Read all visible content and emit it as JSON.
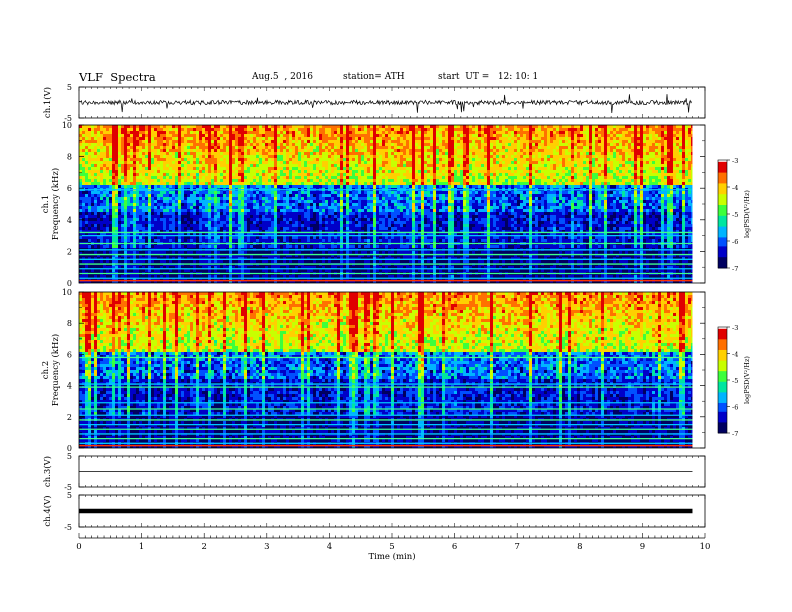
{
  "header": {
    "title": "VLF  Spectra",
    "date": "Aug.5  , 2016",
    "station": "station= ATH",
    "start": "start  UT =   12: 10: 1"
  },
  "chart_data": [
    {
      "type": "line",
      "panel": "ch1-voltage",
      "ylabel": "ch.1(V)",
      "yticks": [
        "5",
        "-5"
      ],
      "ylim": [
        -5,
        5
      ],
      "xlim": [
        0,
        10
      ],
      "data_extent_min": 9.8,
      "baseline_v": 0,
      "note_series": "noisy trace near 0 V with spikes"
    },
    {
      "type": "heatmap",
      "panel": "ch1-spectrogram",
      "ylabel": "ch.1\nFrequency (kHz)",
      "ylabel_line1": "ch.1",
      "ylabel_line2": "Frequency (kHz)",
      "yticks": [
        "0",
        "2",
        "4",
        "6",
        "8",
        "10"
      ],
      "ylim": [
        0,
        10
      ],
      "xlim": [
        0,
        10
      ],
      "colorbar": {
        "label": "logPSD(V²/Hz)",
        "ticks": [
          "-3",
          "-4",
          "-5",
          "-6",
          "-7"
        ],
        "range": [
          -7,
          -3
        ]
      },
      "persistent_lines_khz": [
        0.3,
        0.6,
        0.9,
        1.2,
        1.5,
        1.8,
        2.1,
        2.5,
        3.0,
        3.2,
        5.9
      ]
    },
    {
      "type": "heatmap",
      "panel": "ch2-spectrogram",
      "ylabel_line1": "ch.2",
      "ylabel_line2": "Frequency (kHz)",
      "yticks": [
        "0",
        "2",
        "4",
        "6",
        "8",
        "10"
      ],
      "ylim": [
        0,
        10
      ],
      "xlim": [
        0,
        10
      ],
      "colorbar": {
        "label": "logPSD(V²/Hz)",
        "ticks": [
          "-3",
          "-4",
          "-5",
          "-6",
          "-7"
        ],
        "range": [
          -7,
          -3
        ]
      },
      "persistent_lines_khz": [
        0.3,
        0.6,
        0.9,
        1.2,
        1.5,
        1.8,
        2.1,
        2.5,
        2.9,
        3.9,
        4.1,
        5.8
      ]
    },
    {
      "type": "line",
      "panel": "ch3-voltage",
      "ylabel": "ch.3(V)",
      "yticks": [
        "5",
        "-5"
      ],
      "ylim": [
        -5,
        5
      ],
      "xlim": [
        0,
        10
      ],
      "baseline_v": 0
    },
    {
      "type": "line",
      "panel": "ch4-voltage",
      "ylabel": "ch.4(V)",
      "yticks": [
        "5",
        "-5"
      ],
      "ylim": [
        -5,
        5
      ],
      "xlim": [
        0,
        10
      ],
      "baseline_v": 0
    }
  ],
  "x_axis": {
    "label": "Time  (min)",
    "ticks": [
      "0",
      "1",
      "2",
      "3",
      "4",
      "5",
      "6",
      "7",
      "8",
      "9",
      "10"
    ]
  },
  "colors": {
    "colormap": [
      "#000060",
      "#0000c8",
      "#0050ff",
      "#00b4ff",
      "#00e6a0",
      "#3cff3c",
      "#c8ff00",
      "#ffd000",
      "#ff7000",
      "#e00000",
      "#ffffff"
    ]
  }
}
